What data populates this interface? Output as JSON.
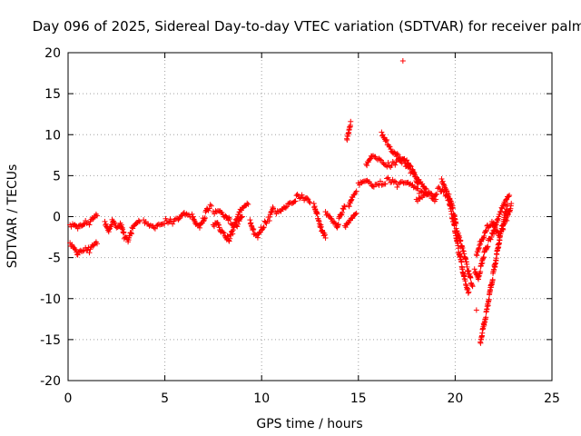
{
  "chart_data": {
    "type": "scatter",
    "title": "Day 096 of 2025, Sidereal Day-to-day VTEC variation (SDTVAR) for receiver palm",
    "xlabel": "GPS time / hours",
    "ylabel": "SDTVAR / TECUs",
    "xlim": [
      0,
      25
    ],
    "ylim": [
      -20,
      20
    ],
    "x_ticks": [
      0,
      5,
      10,
      15,
      20,
      25
    ],
    "y_ticks": [
      -20,
      -15,
      -10,
      -5,
      0,
      5,
      10,
      15,
      20
    ],
    "grid": true,
    "marker": "+",
    "marker_color": "#ff0000",
    "series": [
      {
        "name": "SDTVAR",
        "segments": [
          {
            "x": [
              0.1,
              0.3,
              0.5,
              0.7,
              0.9,
              1.1,
              1.3,
              1.5
            ],
            "y": [
              -1.0,
              -0.8,
              -1.2,
              -0.9,
              -0.5,
              -0.7,
              -0.3,
              0.1
            ]
          },
          {
            "x": [
              0.1,
              0.3,
              0.5,
              0.7,
              0.9,
              1.1,
              1.3,
              1.5
            ],
            "y": [
              -3.2,
              -3.6,
              -4.4,
              -4.0,
              -3.8,
              -4.1,
              -3.6,
              -3.3
            ]
          },
          {
            "x": [
              1.9,
              2.1,
              2.3,
              2.5,
              2.7,
              2.9,
              3.1,
              3.3,
              3.5,
              3.7
            ],
            "y": [
              -0.6,
              -1.6,
              -0.4,
              -1.1,
              -0.8,
              -2.4,
              -3.1,
              -1.6,
              -1.0,
              -0.6
            ]
          },
          {
            "x": [
              3.9,
              4.2,
              4.5,
              4.8,
              5.1,
              5.4,
              5.7,
              6.0,
              6.3
            ],
            "y": [
              -0.4,
              -0.9,
              -1.2,
              -0.7,
              -0.5,
              -0.6,
              -0.4,
              0.2,
              0.0
            ]
          },
          {
            "x": [
              6.4,
              6.6,
              6.8,
              7.0,
              7.2,
              7.4
            ],
            "y": [
              0.3,
              -0.7,
              -1.1,
              -0.3,
              0.9,
              1.3
            ]
          },
          {
            "x": [
              7.5,
              7.7,
              7.9,
              8.1,
              8.3,
              8.5,
              8.7,
              8.9,
              9.1,
              9.3
            ],
            "y": [
              -1.0,
              -0.5,
              -1.6,
              -2.1,
              -2.9,
              -1.8,
              -0.5,
              0.6,
              1.1,
              1.5
            ]
          },
          {
            "x": [
              7.5,
              7.8,
              8.1,
              8.4,
              8.7,
              9.0
            ],
            "y": [
              0.6,
              0.9,
              0.2,
              -0.6,
              -1.1,
              0.0
            ]
          },
          {
            "x": [
              9.4,
              9.6,
              9.8,
              10.0,
              10.2,
              10.4,
              10.6
            ],
            "y": [
              -0.4,
              -1.9,
              -2.3,
              -1.4,
              -0.7,
              -0.2,
              1.0
            ]
          },
          {
            "x": [
              10.7,
              11.0,
              11.3,
              11.6,
              11.9,
              12.2,
              12.5
            ],
            "y": [
              0.6,
              0.9,
              1.5,
              1.9,
              2.5,
              2.3,
              1.7
            ]
          },
          {
            "x": [
              12.7,
              12.9,
              13.1,
              13.3
            ],
            "y": [
              1.6,
              0.0,
              -1.5,
              -2.6
            ]
          },
          {
            "x": [
              13.3,
              13.5,
              13.7,
              13.9,
              14.1,
              14.3
            ],
            "y": [
              0.6,
              0.2,
              -0.5,
              -1.1,
              0.3,
              1.2
            ]
          },
          {
            "x": [
              14.5,
              14.7,
              14.9
            ],
            "y": [
              1.4,
              2.6,
              3.1
            ]
          },
          {
            "x": [
              14.4,
              14.5,
              14.6
            ],
            "y": [
              9.5,
              10.5,
              11.6
            ]
          },
          {
            "x": [
              14.3,
              14.5,
              14.7,
              14.9
            ],
            "y": [
              -1.1,
              -0.5,
              0.1,
              0.4
            ]
          },
          {
            "x": [
              15.4,
              15.7,
              16.0,
              16.3,
              16.6,
              16.9,
              17.2,
              17.5,
              17.8,
              18.1
            ],
            "y": [
              6.4,
              7.6,
              7.2,
              6.7,
              6.2,
              6.6,
              7.0,
              6.6,
              5.6,
              4.1
            ]
          },
          {
            "x": [
              16.2,
              16.5,
              16.8,
              17.1,
              17.4,
              17.7,
              18.0,
              18.3,
              18.6
            ],
            "y": [
              10.3,
              9.0,
              8.0,
              7.2,
              6.5,
              5.6,
              4.6,
              3.7,
              2.9
            ]
          },
          {
            "x": [
              15.0,
              15.4,
              15.8,
              16.2,
              16.6,
              17.0,
              17.4,
              17.8,
              18.2,
              18.6,
              19.0
            ],
            "y": [
              4.1,
              4.6,
              3.9,
              4.1,
              4.5,
              3.9,
              4.1,
              3.6,
              3.0,
              2.6,
              2.1
            ]
          },
          {
            "x": [
              18.0,
              18.3,
              18.6,
              18.9,
              19.2,
              19.5,
              19.7,
              19.9,
              20.1,
              20.3,
              20.5,
              20.7
            ],
            "y": [
              2.1,
              2.6,
              3.0,
              2.7,
              3.4,
              2.8,
              1.5,
              -0.5,
              -3.0,
              -5.5,
              -7.8,
              -9.2
            ]
          },
          {
            "x": [
              19.3,
              19.5,
              19.7,
              19.9,
              20.1,
              20.3,
              20.5,
              20.7,
              20.9
            ],
            "y": [
              4.6,
              3.6,
              2.4,
              0.6,
              -1.8,
              -3.4,
              -5.0,
              -6.9,
              -8.5
            ]
          },
          {
            "x": [
              21.0,
              21.2,
              21.4,
              21.6,
              21.8,
              22.0,
              22.2,
              22.4,
              22.6,
              22.8
            ],
            "y": [
              -6.4,
              -7.4,
              -5.4,
              -3.8,
              -2.7,
              -1.8,
              -0.5,
              0.8,
              1.8,
              2.6
            ]
          },
          {
            "x": [
              21.3,
              21.5,
              21.7,
              21.9,
              22.1,
              22.3,
              22.5,
              22.7
            ],
            "y": [
              -15.3,
              -13.0,
              -10.6,
              -7.9,
              -5.3,
              -2.6,
              -0.6,
              1.5
            ]
          },
          {
            "x": [
              21.1,
              21.3,
              21.5,
              21.7,
              21.9,
              22.1,
              22.3,
              22.5,
              22.7,
              22.9
            ],
            "y": [
              -4.6,
              -3.1,
              -2.1,
              -1.1,
              -0.6,
              -1.6,
              -2.6,
              -1.1,
              -0.1,
              1.6
            ]
          },
          {
            "x": [
              21.1
            ],
            "y": [
              -11.4
            ]
          },
          {
            "x": [
              17.3
            ],
            "y": [
              19.0
            ]
          }
        ]
      }
    ]
  }
}
